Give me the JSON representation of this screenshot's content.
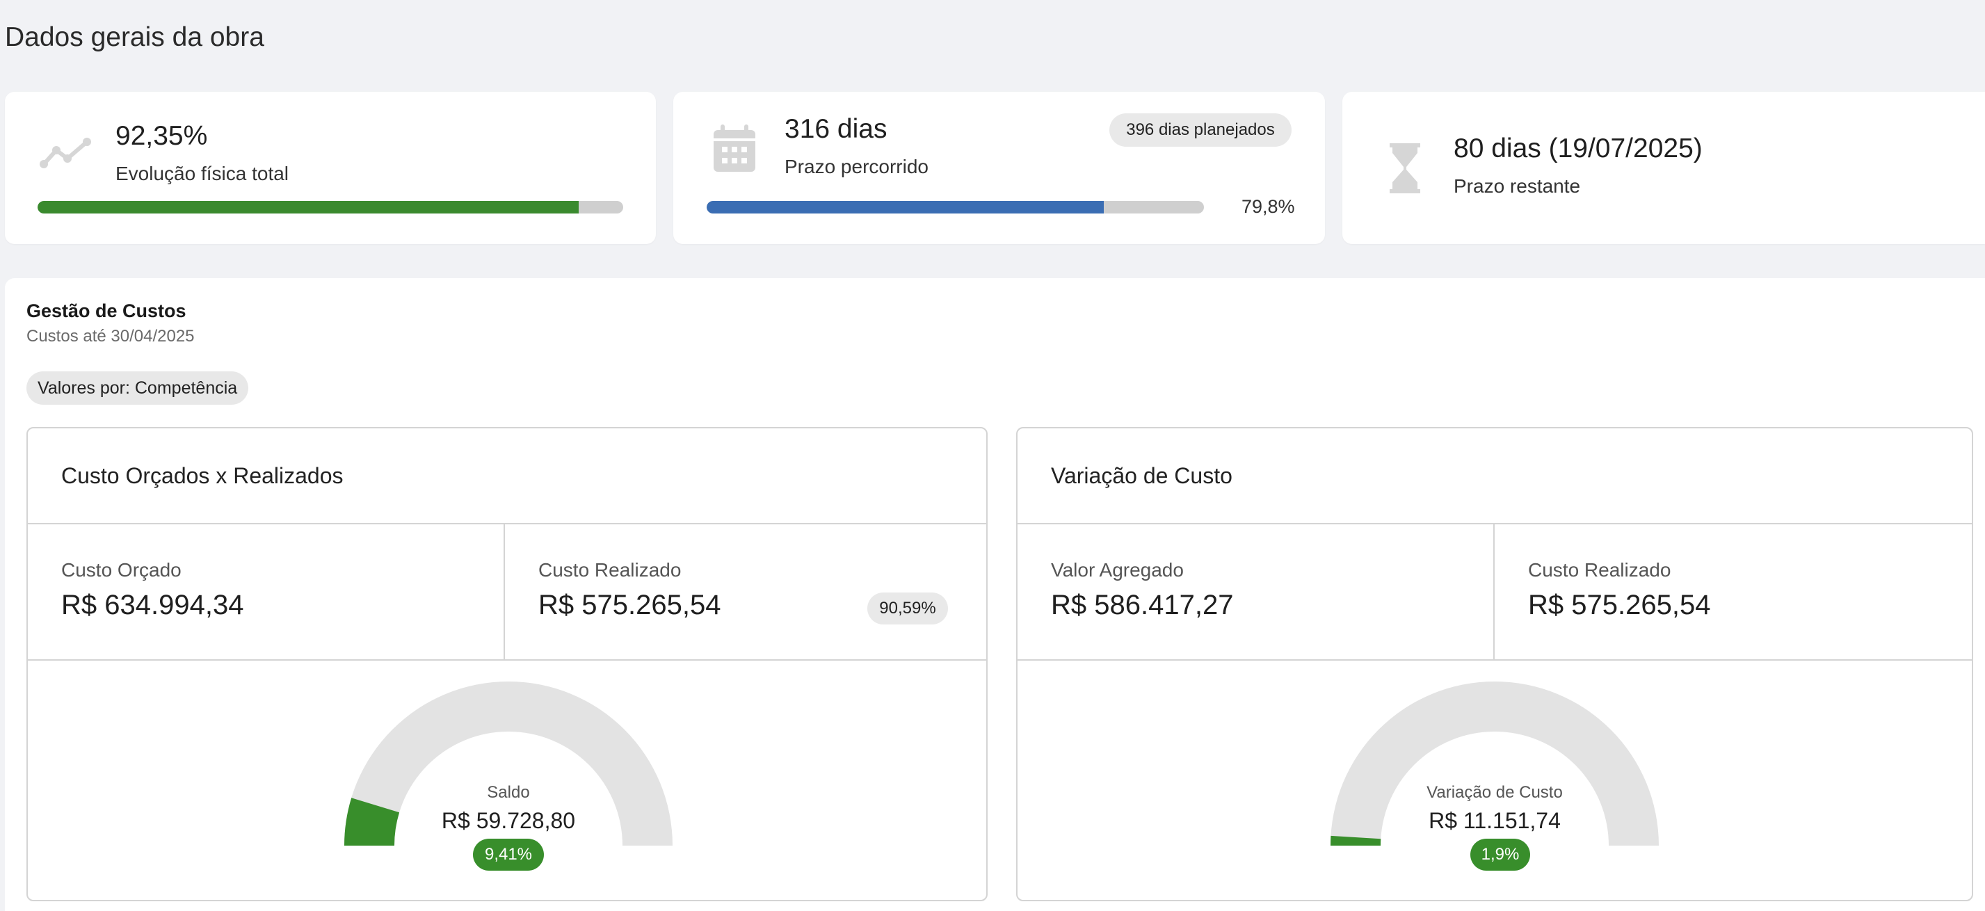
{
  "page": {
    "title": "Dados gerais da obra"
  },
  "kpis": {
    "physical": {
      "value": "92,35%",
      "label": "Evolução física total",
      "progress": 0.9235,
      "color": "#3a8a2e",
      "icon": "trend-line-icon"
    },
    "elapsed": {
      "value": "316 dias",
      "label": "Prazo percorrido",
      "badge": "396 dias planejados",
      "progress": 0.798,
      "progress_text": "79,8%",
      "color": "#3a6db3",
      "icon": "calendar-icon"
    },
    "remaining": {
      "value": "80 dias (19/07/2025)",
      "label": "Prazo restante",
      "icon": "hourglass-icon"
    }
  },
  "costs": {
    "title": "Gestão de Custos",
    "subtitle": "Custos até 30/04/2025",
    "filter_chip": "Valores por: Competência",
    "budget_vs_actual": {
      "title": "Custo Orçados x Realizados",
      "budget_label": "Custo Orçado",
      "budget_value": "R$ 634.994,34",
      "actual_label": "Custo Realizado",
      "actual_value": "R$ 575.265,54",
      "actual_pct": "90,59%",
      "gauge": {
        "label": "Saldo",
        "value": "R$ 59.728,80",
        "badge": "9,41%",
        "fraction": 0.0941
      }
    },
    "variance": {
      "title": "Variação de Custo",
      "earned_label": "Valor Agregado",
      "earned_value": "R$ 586.417,27",
      "actual_label": "Custo Realizado",
      "actual_value": "R$ 575.265,54",
      "gauge": {
        "label": "Variação de Custo",
        "value": "R$ 11.151,74",
        "badge": "1,9%",
        "fraction": 0.019
      }
    }
  },
  "colors": {
    "gauge_fill": "#388e2b",
    "gauge_track": "#e3e3e3",
    "icon_gray": "#d6d6d6"
  }
}
